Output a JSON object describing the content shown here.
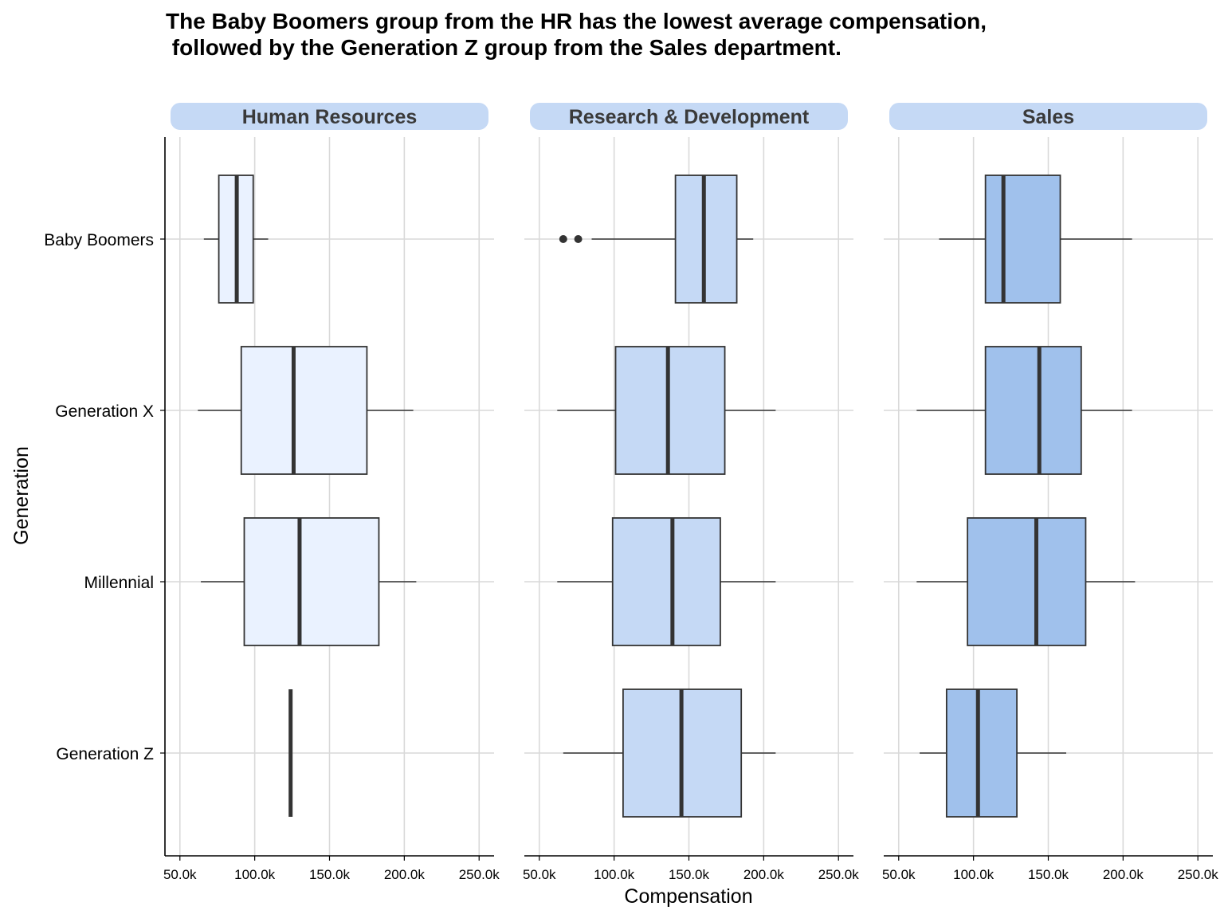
{
  "chart_data": {
    "type": "boxplot",
    "title_lines": [
      "The Baby Boomers group from the HR has the lowest average compensation,",
      " followed by the Generation Z group from the Sales department."
    ],
    "xlabel": "Compensation",
    "ylabel": "Generation",
    "xlim": [
      40000,
      260000
    ],
    "x_ticks": [
      50000,
      100000,
      150000,
      200000,
      250000
    ],
    "x_tick_labels": [
      "50.0k",
      "100.0k",
      "150.0k",
      "200.0k",
      "250.0k"
    ],
    "categories": [
      "Baby Boomers",
      "Generation X",
      "Millennial",
      "Generation Z"
    ],
    "grid": "major vertical and horizontal",
    "strip_color": "#c5d9f5",
    "panels": [
      {
        "name": "Human Resources",
        "fill": "#eaf2ff",
        "boxes": [
          {
            "category": "Baby Boomers",
            "whisker_low": 66000,
            "q1": 76000,
            "median": 88000,
            "q3": 99000,
            "whisker_high": 109000,
            "outliers": []
          },
          {
            "category": "Generation X",
            "whisker_low": 62000,
            "q1": 91000,
            "median": 126000,
            "q3": 175000,
            "whisker_high": 206000,
            "outliers": []
          },
          {
            "category": "Millennial",
            "whisker_low": 64000,
            "q1": 93000,
            "median": 130000,
            "q3": 183000,
            "whisker_high": 208000,
            "outliers": []
          },
          {
            "category": "Generation Z",
            "whisker_low": 124000,
            "q1": 124000,
            "median": 124000,
            "q3": 124000,
            "whisker_high": 124000,
            "outliers": []
          }
        ]
      },
      {
        "name": "Research & Development",
        "fill": "#c5d9f5",
        "boxes": [
          {
            "category": "Baby Boomers",
            "whisker_low": 85000,
            "q1": 141000,
            "median": 160000,
            "q3": 182000,
            "whisker_high": 193000,
            "outliers": [
              66000,
              76000
            ]
          },
          {
            "category": "Generation X",
            "whisker_low": 62000,
            "q1": 101000,
            "median": 136000,
            "q3": 174000,
            "whisker_high": 208000,
            "outliers": []
          },
          {
            "category": "Millennial",
            "whisker_low": 62000,
            "q1": 99000,
            "median": 139000,
            "q3": 171000,
            "whisker_high": 208000,
            "outliers": []
          },
          {
            "category": "Generation Z",
            "whisker_low": 66000,
            "q1": 106000,
            "median": 145000,
            "q3": 185000,
            "whisker_high": 208000,
            "outliers": []
          }
        ]
      },
      {
        "name": "Sales",
        "fill": "#a0c1ec",
        "boxes": [
          {
            "category": "Baby Boomers",
            "whisker_low": 77000,
            "q1": 108000,
            "median": 120000,
            "q3": 158000,
            "whisker_high": 206000,
            "outliers": []
          },
          {
            "category": "Generation X",
            "whisker_low": 62000,
            "q1": 108000,
            "median": 144000,
            "q3": 172000,
            "whisker_high": 206000,
            "outliers": []
          },
          {
            "category": "Millennial",
            "whisker_low": 62000,
            "q1": 96000,
            "median": 142000,
            "q3": 175000,
            "whisker_high": 208000,
            "outliers": []
          },
          {
            "category": "Generation Z",
            "whisker_low": 64000,
            "q1": 82000,
            "median": 103000,
            "q3": 129000,
            "whisker_high": 162000,
            "outliers": []
          }
        ]
      }
    ]
  }
}
